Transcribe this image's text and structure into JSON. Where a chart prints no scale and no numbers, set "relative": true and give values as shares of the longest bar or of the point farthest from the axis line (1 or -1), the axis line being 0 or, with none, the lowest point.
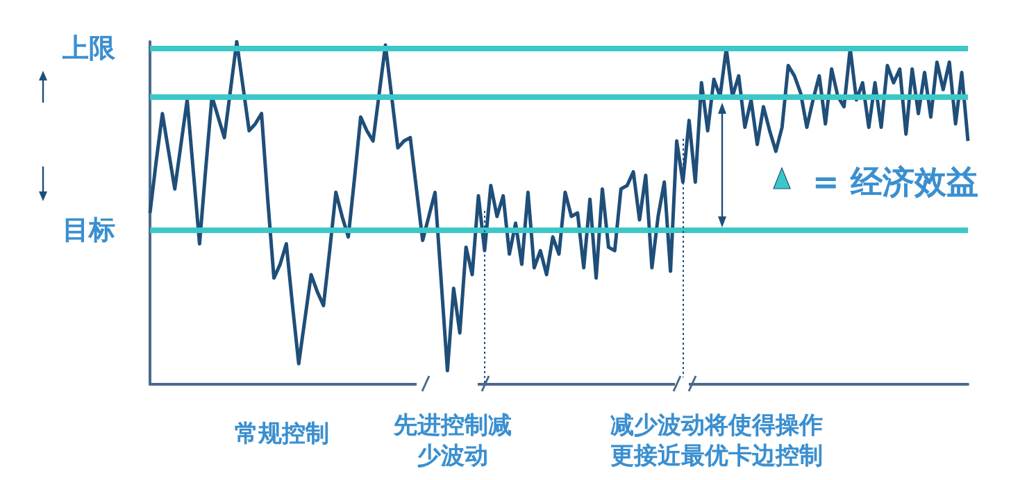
{
  "chart_data": {
    "type": "line",
    "relative": true,
    "color": "#1f4e79",
    "marker": "none",
    "categories": [
      null,
      null,
      null,
      null,
      null,
      null,
      null,
      null,
      null,
      null,
      null,
      null,
      null,
      null,
      null,
      null,
      null,
      null,
      null,
      null,
      null,
      null,
      null,
      null,
      null,
      null,
      null,
      null,
      null,
      null,
      null,
      null,
      null,
      null,
      null,
      null,
      null,
      null,
      null,
      null,
      null,
      null,
      null,
      null,
      null,
      null,
      null,
      null,
      null,
      null,
      null,
      null,
      null,
      null,
      null,
      null,
      null,
      null,
      null,
      null,
      null,
      null,
      null,
      null,
      null,
      null,
      null,
      null,
      null,
      null,
      null,
      null,
      null,
      null,
      null,
      null,
      null,
      null,
      null,
      null,
      null,
      null,
      null,
      null,
      null,
      null,
      null,
      null,
      null,
      null,
      null,
      null,
      null,
      null,
      null,
      null,
      null,
      null,
      null,
      null,
      null,
      null,
      null,
      null,
      null,
      null,
      null,
      null,
      null,
      null,
      null,
      null,
      null,
      null,
      null,
      null,
      null,
      null,
      null,
      null,
      null,
      null,
      null,
      null,
      null,
      null,
      null,
      null,
      null,
      null,
      null,
      null,
      null
    ],
    "values": [
      0.5,
      0.65,
      0.79,
      0.68,
      0.57,
      0.7,
      0.83,
      0.62,
      0.41,
      0.63,
      0.84,
      0.78,
      0.72,
      0.86,
      1.0,
      0.87,
      0.74,
      0.76,
      0.79,
      0.54,
      0.31,
      0.35,
      0.41,
      0.23,
      0.06,
      0.19,
      0.32,
      0.27,
      0.23,
      0.39,
      0.56,
      0.49,
      0.43,
      0.6,
      0.78,
      0.74,
      0.71,
      0.85,
      0.99,
      0.84,
      0.69,
      0.71,
      0.72,
      0.57,
      0.42,
      0.49,
      0.56,
      0.3,
      0.04,
      0.28,
      0.15,
      0.4,
      0.32,
      0.55,
      0.39,
      0.58,
      0.49,
      0.55,
      0.38,
      0.47,
      0.35,
      0.56,
      0.34,
      0.39,
      0.32,
      0.43,
      0.38,
      0.56,
      0.49,
      0.5,
      0.34,
      0.54,
      0.31,
      0.57,
      0.4,
      0.39,
      0.57,
      0.58,
      0.62,
      0.48,
      0.61,
      0.34,
      0.49,
      0.59,
      0.33,
      0.71,
      0.59,
      0.77,
      0.59,
      0.88,
      0.74,
      0.89,
      0.84,
      0.98,
      0.84,
      0.9,
      0.75,
      0.83,
      0.7,
      0.81,
      0.74,
      0.68,
      0.75,
      0.93,
      0.9,
      0.85,
      0.75,
      0.83,
      0.9,
      0.76,
      0.92,
      0.84,
      0.81,
      0.98,
      0.83,
      0.88,
      0.75,
      0.88,
      0.75,
      0.93,
      0.88,
      0.92,
      0.73,
      0.92,
      0.79,
      0.91,
      0.78,
      0.94,
      0.86,
      0.94,
      0.76,
      0.91,
      0.71
    ],
    "ref_lines": [
      {
        "axis": "y",
        "value": 0.98,
        "label": "上限",
        "color": "#3cc8c8"
      },
      {
        "axis": "y",
        "value": 0.45,
        "label": "目标",
        "color": "#3cc8c8"
      },
      {
        "axis": "y",
        "value": 0.84,
        "label": null,
        "color": "#3cc8c8"
      }
    ],
    "annotations": [
      "= 经济效益",
      "常规控制",
      "先进控制减少波动",
      "减少波动将使得操作更接近最优卡边控制"
    ]
  }
}
